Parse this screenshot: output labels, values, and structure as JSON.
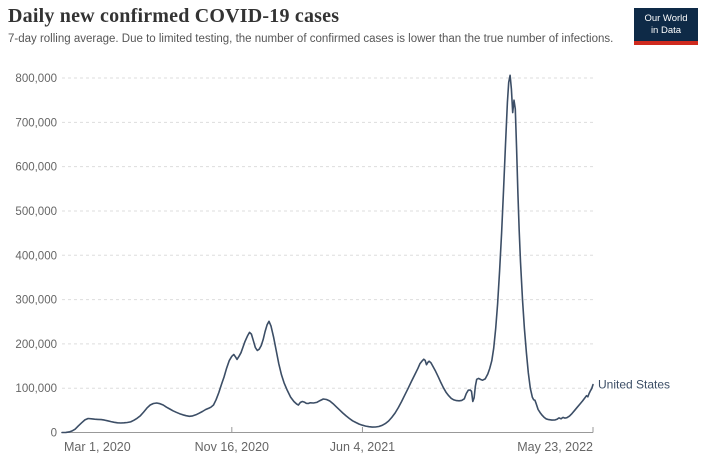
{
  "header": {
    "title": "Daily new confirmed COVID-19 cases",
    "subtitle": "7-day rolling average. Due to limited testing, the number of confirmed cases is lower than the true number of infections.",
    "logo": {
      "line1": "Our World",
      "line2": "in Data",
      "bg_color": "#0e2a47",
      "accent_color": "#cf2a1e"
    }
  },
  "colors": {
    "series": "#3c4e66",
    "grid": "#dddddd",
    "axis": "#999999",
    "tick_text": "#666666",
    "title_text": "#333333",
    "subtitle_text": "#565656"
  },
  "chart_data": {
    "type": "line",
    "title": "Daily new confirmed COVID-19 cases",
    "subtitle": "7-day rolling average.",
    "xlabel": "",
    "ylabel": "",
    "x_unit": "days since Mar 1, 2020",
    "xlim": [
      0,
      813
    ],
    "ylim": [
      0,
      800000
    ],
    "grid": "horizontal-dashed",
    "legend_position": "end-of-line",
    "y_ticks": [
      {
        "value": 0,
        "label": "0"
      },
      {
        "value": 100000,
        "label": "100,000"
      },
      {
        "value": 200000,
        "label": "200,000"
      },
      {
        "value": 300000,
        "label": "300,000"
      },
      {
        "value": 400000,
        "label": "400,000"
      },
      {
        "value": 500000,
        "label": "500,000"
      },
      {
        "value": 600000,
        "label": "600,000"
      },
      {
        "value": 700000,
        "label": "700,000"
      },
      {
        "value": 800000,
        "label": "800,000"
      }
    ],
    "x_ticks": [
      {
        "value": 0,
        "label": "Mar 1, 2020",
        "anchor": "start",
        "tick": false
      },
      {
        "value": 260,
        "label": "Nov 16, 2020",
        "anchor": "middle",
        "tick": true
      },
      {
        "value": 460,
        "label": "Jun 4, 2021",
        "anchor": "middle",
        "tick": true
      },
      {
        "value": 813,
        "label": "May 23, 2022",
        "anchor": "end",
        "tick": true
      }
    ],
    "series": [
      {
        "name": "United States",
        "color": "#3c4e66",
        "points": [
          [
            0,
            100
          ],
          [
            6,
            300
          ],
          [
            12,
            1500
          ],
          [
            16,
            4000
          ],
          [
            20,
            7500
          ],
          [
            25,
            15000
          ],
          [
            30,
            22000
          ],
          [
            35,
            28500
          ],
          [
            40,
            31500
          ],
          [
            45,
            31000
          ],
          [
            50,
            30000
          ],
          [
            55,
            29500
          ],
          [
            60,
            29000
          ],
          [
            65,
            28000
          ],
          [
            70,
            26500
          ],
          [
            75,
            24500
          ],
          [
            80,
            23000
          ],
          [
            85,
            22000
          ],
          [
            90,
            21500
          ],
          [
            95,
            21800
          ],
          [
            100,
            22500
          ],
          [
            105,
            24000
          ],
          [
            110,
            27500
          ],
          [
            115,
            32000
          ],
          [
            120,
            38000
          ],
          [
            125,
            46000
          ],
          [
            130,
            55000
          ],
          [
            135,
            62000
          ],
          [
            140,
            65500
          ],
          [
            145,
            66500
          ],
          [
            150,
            65000
          ],
          [
            155,
            62000
          ],
          [
            160,
            57000
          ],
          [
            165,
            53000
          ],
          [
            170,
            49000
          ],
          [
            175,
            45500
          ],
          [
            180,
            42500
          ],
          [
            185,
            40000
          ],
          [
            190,
            38000
          ],
          [
            195,
            36500
          ],
          [
            200,
            37500
          ],
          [
            205,
            40000
          ],
          [
            210,
            43500
          ],
          [
            215,
            47500
          ],
          [
            220,
            52000
          ],
          [
            225,
            55000
          ],
          [
            228,
            57000
          ],
          [
            232,
            62000
          ],
          [
            236,
            74000
          ],
          [
            240,
            90000
          ],
          [
            244,
            108000
          ],
          [
            248,
            125000
          ],
          [
            252,
            145000
          ],
          [
            256,
            162000
          ],
          [
            260,
            172000
          ],
          [
            263,
            176000
          ],
          [
            266,
            170000
          ],
          [
            268,
            165000
          ],
          [
            271,
            172000
          ],
          [
            274,
            180000
          ],
          [
            277,
            192000
          ],
          [
            280,
            205000
          ],
          [
            284,
            218000
          ],
          [
            287,
            226000
          ],
          [
            290,
            222000
          ],
          [
            293,
            207000
          ],
          [
            296,
            192000
          ],
          [
            299,
            185000
          ],
          [
            302,
            188000
          ],
          [
            305,
            196000
          ],
          [
            308,
            210000
          ],
          [
            311,
            228000
          ],
          [
            314,
            243000
          ],
          [
            317,
            251000
          ],
          [
            320,
            240000
          ],
          [
            324,
            215000
          ],
          [
            328,
            185000
          ],
          [
            332,
            155000
          ],
          [
            336,
            130000
          ],
          [
            340,
            112000
          ],
          [
            345,
            95000
          ],
          [
            350,
            80000
          ],
          [
            355,
            70000
          ],
          [
            359,
            64500
          ],
          [
            362,
            62000
          ],
          [
            365,
            68000
          ],
          [
            368,
            70000
          ],
          [
            371,
            68500
          ],
          [
            374,
            66000
          ],
          [
            377,
            65500
          ],
          [
            380,
            67000
          ],
          [
            385,
            66500
          ],
          [
            390,
            68000
          ],
          [
            395,
            72000
          ],
          [
            400,
            75500
          ],
          [
            405,
            74500
          ],
          [
            410,
            71000
          ],
          [
            415,
            65000
          ],
          [
            420,
            58000
          ],
          [
            425,
            51000
          ],
          [
            430,
            44000
          ],
          [
            435,
            37500
          ],
          [
            440,
            31500
          ],
          [
            445,
            26500
          ],
          [
            450,
            22500
          ],
          [
            455,
            19000
          ],
          [
            460,
            16500
          ],
          [
            465,
            14500
          ],
          [
            470,
            13000
          ],
          [
            475,
            12200
          ],
          [
            480,
            12500
          ],
          [
            485,
            13500
          ],
          [
            490,
            16000
          ],
          [
            495,
            20000
          ],
          [
            500,
            26000
          ],
          [
            505,
            34000
          ],
          [
            510,
            44000
          ],
          [
            515,
            56500
          ],
          [
            520,
            70000
          ],
          [
            525,
            85000
          ],
          [
            530,
            100000
          ],
          [
            535,
            115000
          ],
          [
            540,
            130000
          ],
          [
            545,
            145000
          ],
          [
            548,
            155000
          ],
          [
            551,
            161000
          ],
          [
            554,
            165500
          ],
          [
            556,
            163000
          ],
          [
            558,
            153000
          ],
          [
            560,
            158000
          ],
          [
            562,
            161000
          ],
          [
            565,
            157000
          ],
          [
            568,
            149000
          ],
          [
            572,
            138000
          ],
          [
            576,
            126000
          ],
          [
            580,
            113000
          ],
          [
            584,
            101000
          ],
          [
            588,
            91000
          ],
          [
            592,
            83000
          ],
          [
            596,
            77000
          ],
          [
            600,
            73500
          ],
          [
            604,
            72000
          ],
          [
            608,
            71500
          ],
          [
            612,
            72500
          ],
          [
            616,
            76000
          ],
          [
            619,
            88000
          ],
          [
            622,
            95500
          ],
          [
            625,
            96000
          ],
          [
            627,
            93000
          ],
          [
            629,
            70000
          ],
          [
            631,
            78000
          ],
          [
            633,
            105000
          ],
          [
            635,
            120000
          ],
          [
            638,
            122000
          ],
          [
            641,
            119500
          ],
          [
            644,
            118000
          ],
          [
            648,
            121000
          ],
          [
            652,
            132000
          ],
          [
            655,
            145000
          ],
          [
            658,
            162000
          ],
          [
            661,
            190000
          ],
          [
            664,
            235000
          ],
          [
            667,
            290000
          ],
          [
            670,
            365000
          ],
          [
            673,
            450000
          ],
          [
            676,
            545000
          ],
          [
            679,
            650000
          ],
          [
            682,
            745000
          ],
          [
            684,
            790000
          ],
          [
            686,
            806000
          ],
          [
            688,
            775000
          ],
          [
            690,
            722000
          ],
          [
            692,
            750000
          ],
          [
            694,
            730000
          ],
          [
            696,
            640000
          ],
          [
            698,
            540000
          ],
          [
            700,
            455000
          ],
          [
            702,
            385000
          ],
          [
            705,
            300000
          ],
          [
            708,
            235000
          ],
          [
            711,
            180000
          ],
          [
            714,
            135000
          ],
          [
            717,
            100000
          ],
          [
            720,
            80000
          ],
          [
            722,
            74000
          ],
          [
            724,
            73000
          ],
          [
            726,
            65000
          ],
          [
            729,
            52000
          ],
          [
            732,
            45000
          ],
          [
            735,
            39000
          ],
          [
            738,
            34500
          ],
          [
            741,
            31000
          ],
          [
            745,
            29000
          ],
          [
            750,
            28000
          ],
          [
            755,
            28500
          ],
          [
            758,
            30000
          ],
          [
            761,
            33000
          ],
          [
            764,
            31000
          ],
          [
            767,
            34000
          ],
          [
            770,
            32500
          ],
          [
            773,
            33500
          ],
          [
            777,
            37000
          ],
          [
            781,
            43000
          ],
          [
            785,
            50000
          ],
          [
            789,
            57000
          ],
          [
            793,
            64000
          ],
          [
            797,
            71000
          ],
          [
            800,
            77000
          ],
          [
            803,
            83000
          ],
          [
            805,
            80500
          ],
          [
            807,
            88000
          ],
          [
            809,
            94000
          ],
          [
            811,
            99000
          ],
          [
            813,
            108000
          ]
        ]
      }
    ]
  }
}
